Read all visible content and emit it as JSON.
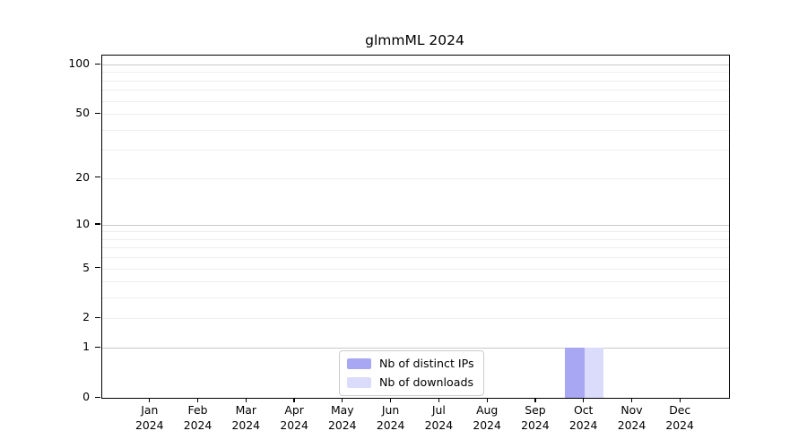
{
  "chart_data": {
    "type": "bar",
    "title": "glmmML 2024",
    "categories": [
      "Jan",
      "Feb",
      "Mar",
      "Apr",
      "May",
      "Jun",
      "Jul",
      "Aug",
      "Sep",
      "Oct",
      "Nov",
      "Dec"
    ],
    "x_year_line": "2024",
    "series": [
      {
        "name": "Nb of distinct IPs",
        "color": "#a7a7f3",
        "values": [
          0,
          0,
          0,
          0,
          0,
          0,
          0,
          0,
          0,
          1,
          0,
          0
        ]
      },
      {
        "name": "Nb of downloads",
        "color": "#dbdbfb",
        "values": [
          0,
          0,
          0,
          0,
          0,
          0,
          0,
          0,
          0,
          1,
          0,
          0
        ]
      }
    ],
    "y_axis": {
      "scale": "log1p",
      "tick_values": [
        0,
        1,
        2,
        5,
        10,
        20,
        50,
        100
      ],
      "tick_labels": [
        "0",
        "1",
        "2",
        "5",
        "10",
        "20",
        "50",
        "100"
      ],
      "major_grid_values": [
        1,
        10,
        100
      ],
      "minor_grid_values": [
        2,
        3,
        4,
        5,
        6,
        7,
        8,
        9,
        20,
        30,
        40,
        50,
        60,
        70,
        80,
        90
      ]
    },
    "legend": {
      "position": "lower-center"
    },
    "grid": true
  },
  "colors": {
    "background": "#ffffff",
    "axis": "#000000",
    "text": "#000000",
    "major_grid": "#c9c9c9",
    "minor_grid": "#ededed",
    "legend_border": "#cccccc"
  }
}
